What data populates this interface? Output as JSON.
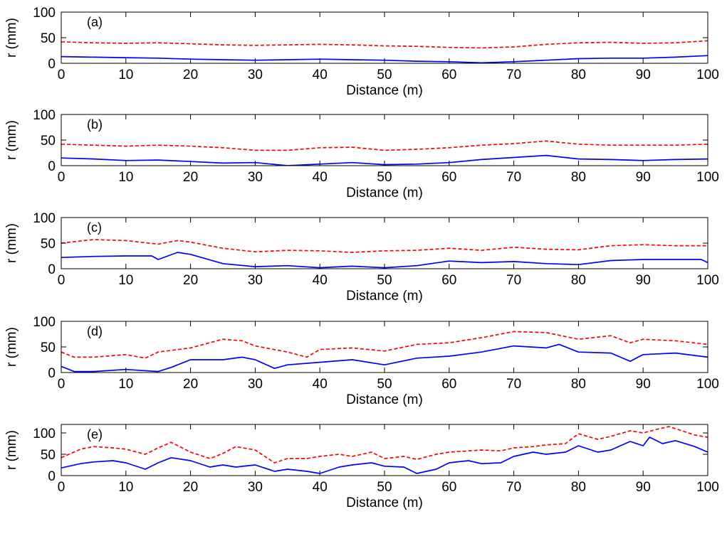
{
  "chart_data": [
    {
      "type": "line",
      "panel_label": "(a)",
      "xlabel": "Distance (m)",
      "ylabel": "r (mm)",
      "xlim": [
        0,
        100
      ],
      "ylim": [
        0,
        100
      ],
      "xticks": [
        0,
        10,
        20,
        30,
        40,
        50,
        60,
        70,
        80,
        90,
        100
      ],
      "yticks": [
        0,
        50,
        100
      ],
      "grid": false,
      "series": [
        {
          "style": "dashed",
          "color": "#ff0000",
          "x": [
            0,
            5,
            10,
            15,
            20,
            25,
            30,
            35,
            40,
            45,
            50,
            55,
            60,
            65,
            70,
            75,
            80,
            85,
            90,
            95,
            100
          ],
          "y": [
            42,
            40,
            39,
            40,
            38,
            36,
            35,
            36,
            37,
            36,
            34,
            33,
            31,
            30,
            32,
            37,
            40,
            41,
            39,
            40,
            44
          ]
        },
        {
          "style": "solid",
          "color": "#0000ff",
          "x": [
            0,
            5,
            10,
            15,
            20,
            25,
            30,
            35,
            40,
            45,
            50,
            55,
            60,
            65,
            70,
            75,
            80,
            85,
            90,
            95,
            100
          ],
          "y": [
            13,
            12,
            11,
            10,
            8,
            7,
            6,
            7,
            8,
            7,
            6,
            4,
            3,
            1,
            3,
            6,
            9,
            10,
            10,
            12,
            15
          ]
        }
      ]
    },
    {
      "type": "line",
      "panel_label": "(b)",
      "xlabel": "Distance (m)",
      "ylabel": "r (mm)",
      "xlim": [
        0,
        100
      ],
      "ylim": [
        0,
        100
      ],
      "xticks": [
        0,
        10,
        20,
        30,
        40,
        50,
        60,
        70,
        80,
        90,
        100
      ],
      "yticks": [
        0,
        50,
        100
      ],
      "grid": false,
      "series": [
        {
          "style": "dashed",
          "color": "#ff0000",
          "x": [
            0,
            5,
            10,
            15,
            20,
            25,
            30,
            35,
            40,
            45,
            50,
            55,
            60,
            65,
            70,
            75,
            80,
            85,
            90,
            95,
            100
          ],
          "y": [
            42,
            40,
            38,
            40,
            38,
            35,
            30,
            30,
            35,
            36,
            30,
            32,
            35,
            40,
            43,
            48,
            42,
            40,
            40,
            40,
            42
          ]
        },
        {
          "style": "solid",
          "color": "#0000ff",
          "x": [
            0,
            5,
            10,
            15,
            20,
            25,
            30,
            35,
            40,
            45,
            50,
            55,
            60,
            65,
            70,
            75,
            80,
            85,
            90,
            95,
            100
          ],
          "y": [
            15,
            13,
            10,
            11,
            8,
            5,
            6,
            0,
            3,
            6,
            2,
            3,
            6,
            12,
            16,
            20,
            13,
            12,
            10,
            12,
            13
          ]
        }
      ]
    },
    {
      "type": "line",
      "panel_label": "(c)",
      "xlabel": "Distance (m)",
      "ylabel": "r (mm)",
      "xlim": [
        0,
        100
      ],
      "ylim": [
        0,
        100
      ],
      "xticks": [
        0,
        10,
        20,
        30,
        40,
        50,
        60,
        70,
        80,
        90,
        100
      ],
      "yticks": [
        0,
        50,
        100
      ],
      "grid": false,
      "series": [
        {
          "style": "dashed",
          "color": "#ff0000",
          "x": [
            0,
            5,
            10,
            15,
            18,
            20,
            25,
            30,
            35,
            40,
            45,
            50,
            55,
            60,
            65,
            70,
            75,
            80,
            85,
            90,
            95,
            100
          ],
          "y": [
            50,
            57,
            55,
            48,
            55,
            52,
            40,
            33,
            36,
            35,
            32,
            35,
            36,
            40,
            36,
            42,
            38,
            37,
            45,
            47,
            45,
            45
          ]
        },
        {
          "style": "solid",
          "color": "#0000ff",
          "x": [
            0,
            5,
            10,
            14,
            15,
            18,
            20,
            25,
            30,
            35,
            40,
            45,
            50,
            55,
            60,
            65,
            70,
            75,
            80,
            85,
            90,
            95,
            99,
            100
          ],
          "y": [
            22,
            24,
            25,
            25,
            18,
            32,
            28,
            10,
            4,
            6,
            2,
            5,
            2,
            6,
            15,
            12,
            14,
            10,
            8,
            16,
            18,
            18,
            18,
            12
          ]
        }
      ]
    },
    {
      "type": "line",
      "panel_label": "(d)",
      "xlabel": "Distance (m)",
      "ylabel": "r (mm)",
      "xlim": [
        0,
        100
      ],
      "ylim": [
        0,
        100
      ],
      "xticks": [
        0,
        10,
        20,
        30,
        40,
        50,
        60,
        70,
        80,
        90,
        100
      ],
      "yticks": [
        0,
        50,
        100
      ],
      "grid": false,
      "series": [
        {
          "style": "dashed",
          "color": "#ff0000",
          "x": [
            0,
            2,
            5,
            10,
            13,
            15,
            20,
            25,
            28,
            30,
            35,
            38,
            40,
            45,
            50,
            55,
            60,
            65,
            70,
            75,
            80,
            85,
            88,
            90,
            95,
            100
          ],
          "y": [
            40,
            30,
            30,
            35,
            28,
            40,
            48,
            65,
            62,
            52,
            40,
            30,
            45,
            48,
            42,
            55,
            58,
            68,
            80,
            78,
            65,
            72,
            58,
            65,
            62,
            55
          ]
        },
        {
          "style": "solid",
          "color": "#0000ff",
          "x": [
            0,
            2,
            5,
            10,
            15,
            17,
            20,
            25,
            28,
            30,
            33,
            35,
            40,
            45,
            50,
            55,
            60,
            65,
            70,
            75,
            77,
            80,
            85,
            88,
            90,
            95,
            100
          ],
          "y": [
            12,
            2,
            2,
            6,
            2,
            10,
            25,
            25,
            30,
            25,
            8,
            15,
            20,
            25,
            15,
            28,
            32,
            40,
            52,
            48,
            55,
            40,
            38,
            22,
            35,
            38,
            30
          ]
        }
      ]
    },
    {
      "type": "line",
      "panel_label": "(e)",
      "xlabel": "Distance (m)",
      "ylabel": "r (mm)",
      "xlim": [
        0,
        100
      ],
      "ylim": [
        0,
        120
      ],
      "xticks": [
        0,
        10,
        20,
        30,
        40,
        50,
        60,
        70,
        80,
        90,
        100
      ],
      "yticks": [
        0,
        50,
        100
      ],
      "grid": false,
      "series": [
        {
          "style": "dashed",
          "color": "#ff0000",
          "x": [
            0,
            3,
            5,
            8,
            10,
            13,
            15,
            17,
            20,
            23,
            25,
            27,
            30,
            33,
            35,
            38,
            40,
            43,
            45,
            48,
            50,
            53,
            55,
            58,
            60,
            63,
            65,
            68,
            70,
            73,
            75,
            78,
            80,
            83,
            85,
            88,
            90,
            92,
            94,
            96,
            98,
            100
          ],
          "y": [
            42,
            62,
            68,
            65,
            62,
            50,
            65,
            78,
            55,
            40,
            52,
            68,
            60,
            30,
            40,
            40,
            45,
            50,
            45,
            55,
            40,
            45,
            38,
            50,
            55,
            58,
            60,
            58,
            65,
            68,
            72,
            75,
            98,
            85,
            92,
            105,
            100,
            108,
            115,
            105,
            95,
            90
          ]
        },
        {
          "style": "solid",
          "color": "#0000ff",
          "x": [
            0,
            3,
            5,
            8,
            10,
            13,
            15,
            17,
            20,
            23,
            25,
            27,
            30,
            33,
            35,
            38,
            40,
            43,
            45,
            48,
            50,
            53,
            55,
            58,
            60,
            63,
            65,
            68,
            70,
            73,
            75,
            78,
            80,
            83,
            85,
            88,
            90,
            91,
            93,
            95,
            98,
            100
          ],
          "y": [
            18,
            28,
            32,
            35,
            30,
            15,
            30,
            42,
            35,
            20,
            25,
            20,
            25,
            10,
            15,
            10,
            5,
            20,
            25,
            30,
            22,
            20,
            5,
            15,
            30,
            35,
            28,
            30,
            45,
            55,
            50,
            55,
            70,
            55,
            60,
            80,
            70,
            90,
            75,
            82,
            68,
            55
          ]
        }
      ]
    }
  ]
}
